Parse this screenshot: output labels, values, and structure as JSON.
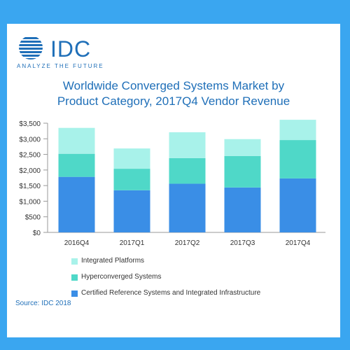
{
  "logo": {
    "name": "IDC",
    "tagline": "ANALYZE THE FUTURE",
    "color": "#1f6fb8"
  },
  "title_line1": "Worldwide Converged Systems Market by",
  "title_line2": "Product Category, 2017Q4 Vendor Revenue",
  "source": "Source: IDC 2018",
  "chart_data": {
    "type": "bar",
    "stacked": true,
    "categories": [
      "2016Q4",
      "2017Q1",
      "2017Q2",
      "2017Q3",
      "2017Q4"
    ],
    "series": [
      {
        "name": "Certified Reference Systems and Integrated Infrastructure",
        "color": "#3a8ee6",
        "values": [
          1780,
          1350,
          1560,
          1440,
          1730
        ]
      },
      {
        "name": "Hyperconverged Systems",
        "color": "#4fd8c8",
        "values": [
          740,
          690,
          820,
          1010,
          1230
        ]
      },
      {
        "name": "Integrated Platforms",
        "color": "#a8f2ea",
        "values": [
          830,
          650,
          830,
          540,
          650
        ]
      }
    ],
    "legend_order": [
      2,
      1,
      0
    ],
    "y_ticks": [
      "$0",
      "$500",
      "$1,000",
      "$1,500",
      "$2,000",
      "$2,500",
      "$3,000",
      "$3,500"
    ],
    "ylim": [
      0,
      3500
    ],
    "grid": false,
    "legend_position": "bottom"
  }
}
